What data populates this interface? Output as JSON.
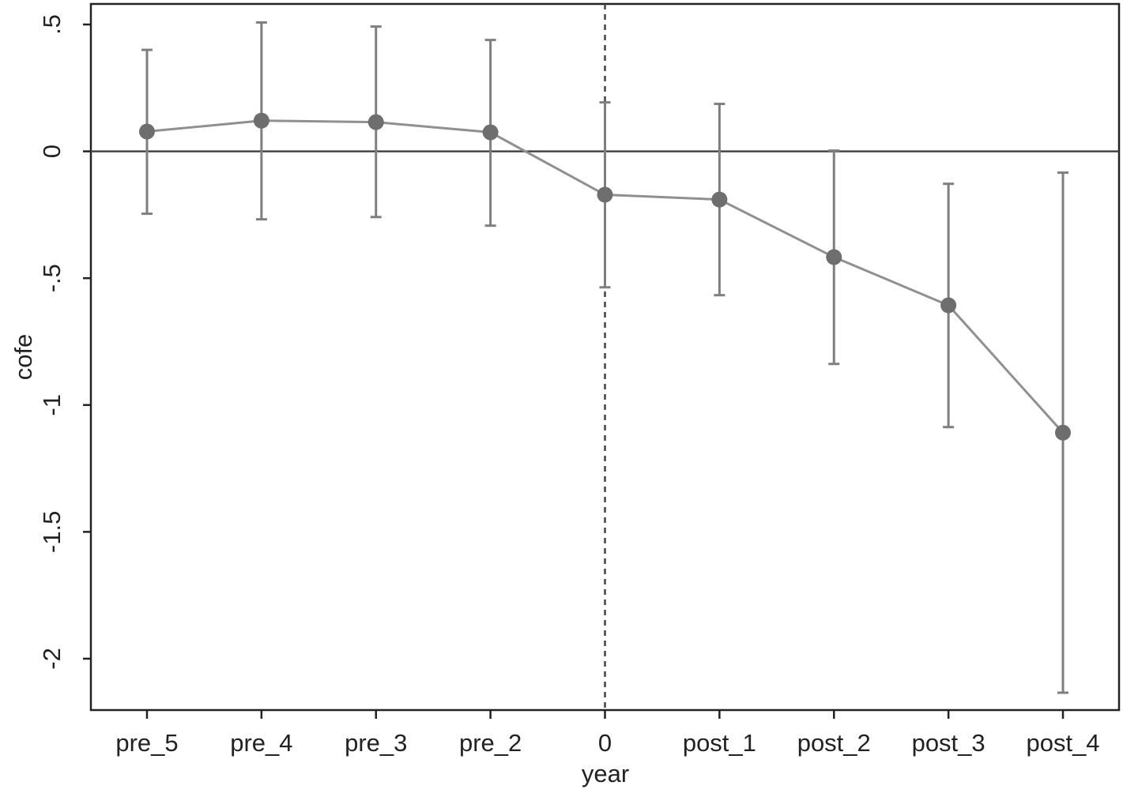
{
  "chart_data": {
    "type": "line",
    "x_label": "year",
    "y_label": "cofe",
    "categories": [
      "pre_5",
      "pre_4",
      "pre_3",
      "pre_2",
      "0",
      "post_1",
      "post_2",
      "post_3",
      "post_4"
    ],
    "series": [
      {
        "color": "#909090",
        "marker_color": "#6e6e6e",
        "error_color": "#7f7f7f",
        "values": [
          0.078,
          0.121,
          0.115,
          0.075,
          -0.171,
          -0.19,
          -0.417,
          -0.607,
          -1.109
        ],
        "lower": [
          -0.246,
          -0.268,
          -0.259,
          -0.293,
          -0.536,
          -0.567,
          -0.838,
          -1.087,
          -2.134
        ],
        "upper": [
          0.4,
          0.508,
          0.492,
          0.439,
          0.193,
          0.187,
          0.003,
          -0.128,
          -0.084
        ]
      }
    ],
    "ylim": [
      -2.2025,
      0.581
    ],
    "yticks": [
      {
        "value": -2,
        "label": "-2"
      },
      {
        "value": -1.5,
        "label": "-1.5"
      },
      {
        "value": -1,
        "label": "-1"
      },
      {
        "value": -0.5,
        "label": "-.5"
      },
      0,
      {
        "value": 0.5,
        "label": ".5"
      }
    ],
    "hline": 0,
    "vline_category": 4
  }
}
